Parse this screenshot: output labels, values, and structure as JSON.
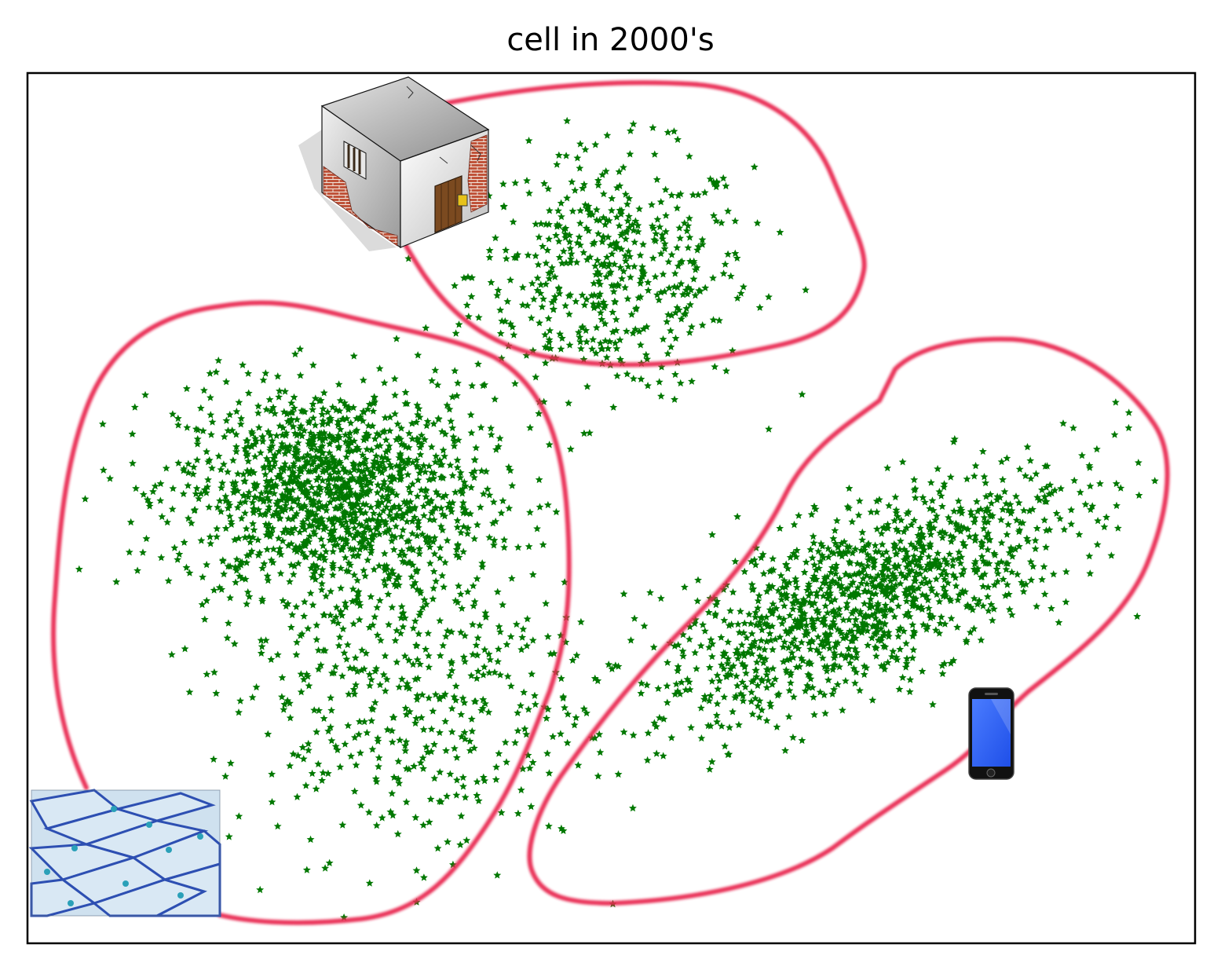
{
  "chart_data": {
    "type": "scatter",
    "title": "cell in 2000's",
    "xlabel": "",
    "ylabel": "",
    "axes_ticks": "none",
    "grid": false,
    "legend": "none",
    "marker": "star",
    "colors": {
      "points": "#007800",
      "outline": "#e8284f",
      "frame": "#000000"
    },
    "clusters": [
      {
        "name": "",
        "meaning": "prison-cell-icon",
        "center": [
          0.5,
          0.77
        ],
        "spread": [
          0.06,
          0.07
        ],
        "count": 500
      },
      {
        "name": "",
        "meaning": "biological-cell-icon",
        "center": [
          0.26,
          0.52
        ],
        "spread": [
          0.065,
          0.06
        ],
        "count": 1300
      },
      {
        "name": "",
        "meaning": "biological-cell-icon",
        "center": [
          0.32,
          0.3
        ],
        "spread": [
          0.08,
          0.1
        ],
        "count": 500
      },
      {
        "name": "",
        "meaning": "cell-phone-icon",
        "center": [
          0.72,
          0.4
        ],
        "spread": [
          0.09,
          0.06
        ],
        "count": 1200
      }
    ],
    "icons": [
      "prison-cell-icon",
      "cell-phone-icon",
      "biological-cell-icon"
    ]
  }
}
